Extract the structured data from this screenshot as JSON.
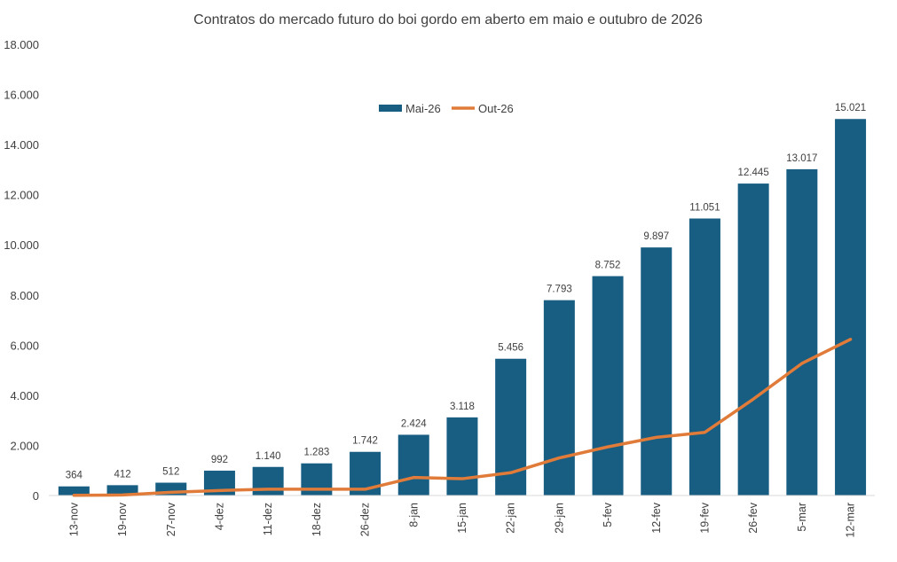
{
  "chart_data": {
    "type": "bar",
    "title": "Contratos do mercado futuro do boi gordo em aberto em maio  e outubro de 2026",
    "xlabel": "",
    "ylabel": "",
    "ylim": [
      0,
      18000
    ],
    "yticks": [
      0,
      2000,
      4000,
      6000,
      8000,
      10000,
      12000,
      14000,
      16000,
      18000
    ],
    "ytick_labels": [
      "0",
      "2.000",
      "4.000",
      "6.000",
      "8.000",
      "10.000",
      "12.000",
      "14.000",
      "16.000",
      "18.000"
    ],
    "grid": false,
    "legend_placement": "top-center",
    "categories": [
      "13-nov",
      "19-nov",
      "27-nov",
      "4-dez",
      "11-dez",
      "18-dez",
      "26-dez",
      "8-jan",
      "15-jan",
      "22-jan",
      "29-jan",
      "5-fev",
      "12-fev",
      "19-fev",
      "26-fev",
      "5-mar",
      "12-mar"
    ],
    "series": [
      {
        "name": "Mai-26",
        "type": "bar",
        "color": "#175e82",
        "values": [
          364,
          412,
          512,
          992,
          1140,
          1283,
          1742,
          2424,
          3118,
          5456,
          7793,
          8752,
          9897,
          11051,
          12445,
          13017,
          15021
        ],
        "labels": [
          "364",
          "412",
          "512",
          "992",
          "1.140",
          "1.283",
          "1.742",
          "2.424",
          "3.118",
          "5.456",
          "7.793",
          "8.752",
          "9.897",
          "11.051",
          "12.445",
          "13.017",
          "15.021"
        ]
      },
      {
        "name": "Out-26",
        "type": "line",
        "color": "#e07b39",
        "values": [
          10,
          20,
          130,
          200,
          250,
          250,
          250,
          720,
          670,
          910,
          1500,
          1940,
          2320,
          2520,
          3850,
          5270,
          6230
        ]
      }
    ]
  }
}
